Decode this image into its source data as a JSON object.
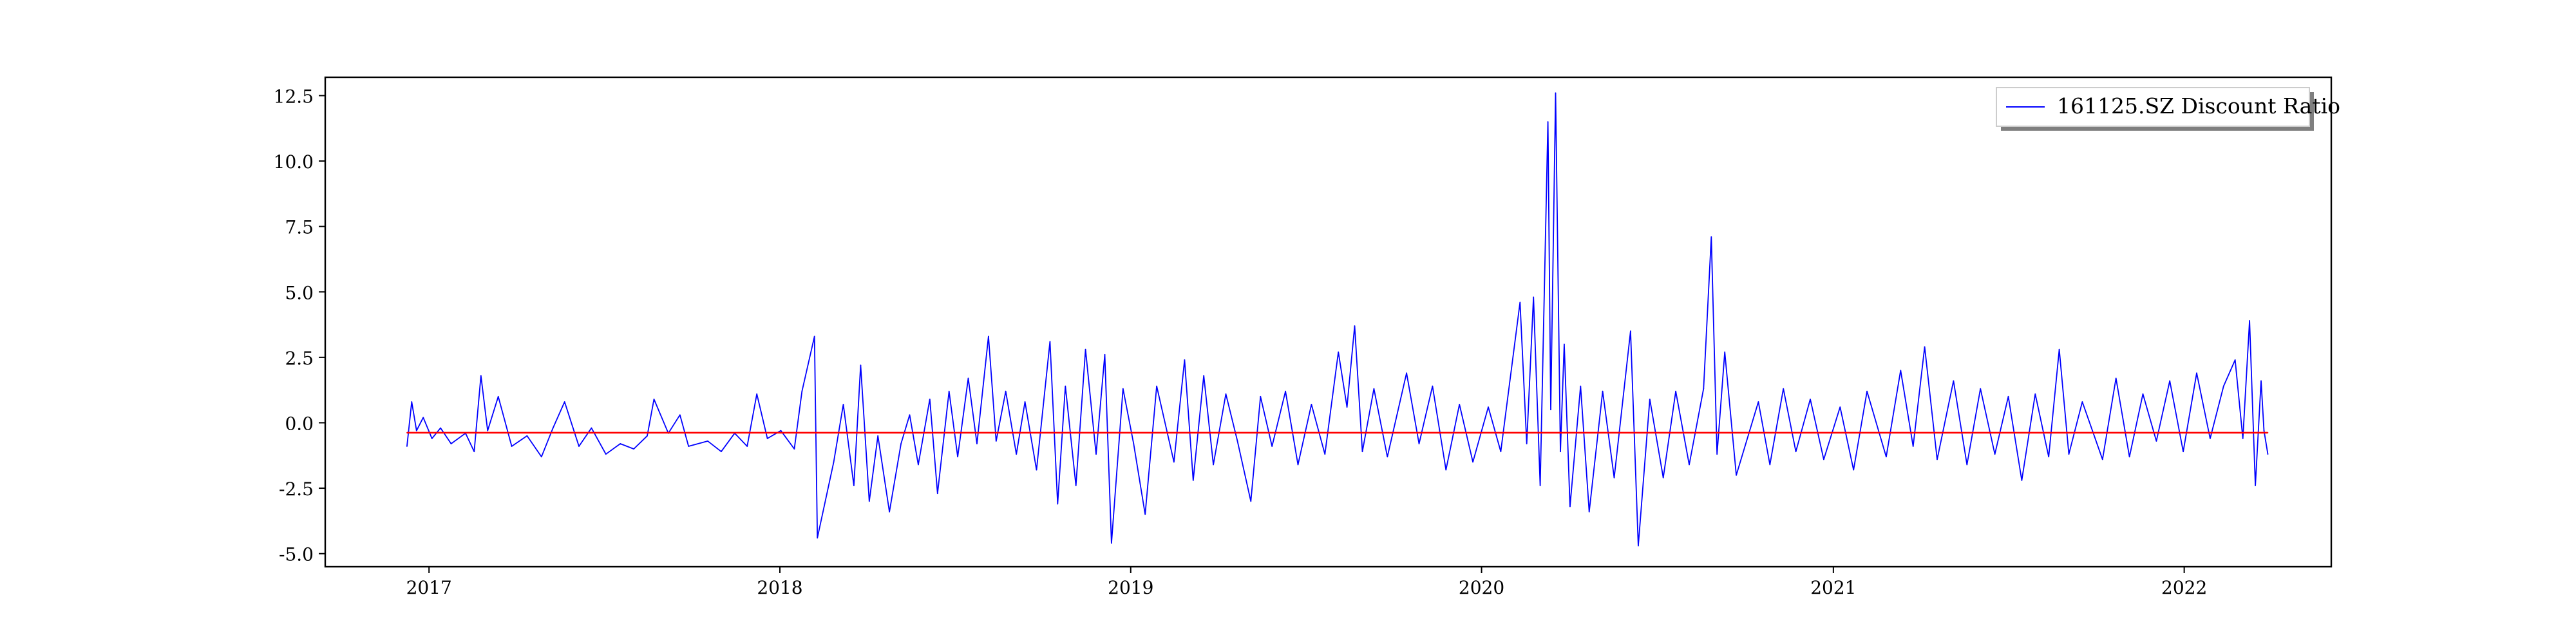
{
  "chart_data": {
    "type": "line",
    "title": "",
    "xlabel": "",
    "ylabel": "",
    "xlim": [
      "2016-09-15",
      "2022-06-03"
    ],
    "ylim": [
      -5.5,
      13.2
    ],
    "x_ticks": [
      "2017",
      "2018",
      "2019",
      "2020",
      "2021",
      "2022"
    ],
    "y_ticks": [
      -5.0,
      -2.5,
      0.0,
      2.5,
      5.0,
      7.5,
      10.0,
      12.5
    ],
    "grid": false,
    "legend": {
      "position": "top-right",
      "entries": [
        "161125.SZ Discount Ratio"
      ]
    },
    "series": [
      {
        "name": "161125.SZ Discount Ratio",
        "color": "#0000ff",
        "points": [
          [
            "2016-12-09",
            -0.9
          ],
          [
            "2016-12-14",
            0.8
          ],
          [
            "2016-12-19",
            -0.3
          ],
          [
            "2016-12-26",
            0.2
          ],
          [
            "2017-01-04",
            -0.6
          ],
          [
            "2017-01-13",
            -0.2
          ],
          [
            "2017-01-24",
            -0.8
          ],
          [
            "2017-02-08",
            -0.4
          ],
          [
            "2017-02-17",
            -1.1
          ],
          [
            "2017-02-24",
            1.8
          ],
          [
            "2017-03-03",
            -0.3
          ],
          [
            "2017-03-14",
            1.0
          ],
          [
            "2017-03-28",
            -0.9
          ],
          [
            "2017-04-13",
            -0.5
          ],
          [
            "2017-04-28",
            -1.3
          ],
          [
            "2017-05-10",
            -0.2
          ],
          [
            "2017-05-22",
            0.8
          ],
          [
            "2017-06-06",
            -0.9
          ],
          [
            "2017-06-19",
            -0.2
          ],
          [
            "2017-07-04",
            -1.2
          ],
          [
            "2017-07-19",
            -0.8
          ],
          [
            "2017-08-02",
            -1.0
          ],
          [
            "2017-08-16",
            -0.5
          ],
          [
            "2017-08-23",
            0.9
          ],
          [
            "2017-09-07",
            -0.4
          ],
          [
            "2017-09-19",
            0.3
          ],
          [
            "2017-09-28",
            -0.9
          ],
          [
            "2017-10-18",
            -0.7
          ],
          [
            "2017-11-01",
            -1.1
          ],
          [
            "2017-11-15",
            -0.4
          ],
          [
            "2017-11-28",
            -0.9
          ],
          [
            "2017-12-08",
            1.1
          ],
          [
            "2017-12-19",
            -0.6
          ],
          [
            "2018-01-02",
            -0.3
          ],
          [
            "2018-01-16",
            -1.0
          ],
          [
            "2018-01-24",
            1.2
          ],
          [
            "2018-02-06",
            3.3
          ],
          [
            "2018-02-09",
            -4.4
          ],
          [
            "2018-02-26",
            -1.5
          ],
          [
            "2018-03-08",
            0.7
          ],
          [
            "2018-03-19",
            -2.4
          ],
          [
            "2018-03-26",
            2.2
          ],
          [
            "2018-04-04",
            -3.0
          ],
          [
            "2018-04-13",
            -0.5
          ],
          [
            "2018-04-25",
            -3.4
          ],
          [
            "2018-05-07",
            -0.8
          ],
          [
            "2018-05-16",
            0.3
          ],
          [
            "2018-05-25",
            -1.6
          ],
          [
            "2018-06-06",
            0.9
          ],
          [
            "2018-06-14",
            -2.7
          ],
          [
            "2018-06-26",
            1.2
          ],
          [
            "2018-07-05",
            -1.3
          ],
          [
            "2018-07-16",
            1.7
          ],
          [
            "2018-07-25",
            -0.8
          ],
          [
            "2018-08-06",
            3.3
          ],
          [
            "2018-08-14",
            -0.7
          ],
          [
            "2018-08-24",
            1.2
          ],
          [
            "2018-09-04",
            -1.2
          ],
          [
            "2018-09-13",
            0.8
          ],
          [
            "2018-09-25",
            -1.8
          ],
          [
            "2018-10-09",
            3.1
          ],
          [
            "2018-10-17",
            -3.1
          ],
          [
            "2018-10-25",
            1.4
          ],
          [
            "2018-11-05",
            -2.4
          ],
          [
            "2018-11-15",
            2.8
          ],
          [
            "2018-11-26",
            -1.2
          ],
          [
            "2018-12-05",
            2.6
          ],
          [
            "2018-12-12",
            -4.6
          ],
          [
            "2018-12-24",
            1.3
          ],
          [
            "2019-01-04",
            -0.8
          ],
          [
            "2019-01-16",
            -3.5
          ],
          [
            "2019-01-28",
            1.4
          ],
          [
            "2019-02-15",
            -1.5
          ],
          [
            "2019-02-26",
            2.4
          ],
          [
            "2019-03-07",
            -2.2
          ],
          [
            "2019-03-18",
            1.8
          ],
          [
            "2019-03-28",
            -1.6
          ],
          [
            "2019-04-10",
            1.1
          ],
          [
            "2019-04-22",
            -0.7
          ],
          [
            "2019-05-06",
            -3.0
          ],
          [
            "2019-05-16",
            1.0
          ],
          [
            "2019-05-28",
            -0.9
          ],
          [
            "2019-06-11",
            1.2
          ],
          [
            "2019-06-24",
            -1.6
          ],
          [
            "2019-07-08",
            0.7
          ],
          [
            "2019-07-22",
            -1.2
          ],
          [
            "2019-08-05",
            2.7
          ],
          [
            "2019-08-14",
            0.6
          ],
          [
            "2019-08-22",
            3.7
          ],
          [
            "2019-08-30",
            -1.1
          ],
          [
            "2019-09-11",
            1.3
          ],
          [
            "2019-09-25",
            -1.3
          ],
          [
            "2019-10-15",
            1.9
          ],
          [
            "2019-10-28",
            -0.8
          ],
          [
            "2019-11-11",
            1.4
          ],
          [
            "2019-11-25",
            -1.8
          ],
          [
            "2019-12-09",
            0.7
          ],
          [
            "2019-12-23",
            -1.5
          ],
          [
            "2020-01-08",
            0.6
          ],
          [
            "2020-01-21",
            -1.1
          ],
          [
            "2020-02-10",
            4.6
          ],
          [
            "2020-02-17",
            -0.8
          ],
          [
            "2020-02-24",
            4.8
          ],
          [
            "2020-03-02",
            -2.4
          ],
          [
            "2020-03-10",
            11.5
          ],
          [
            "2020-03-13",
            0.5
          ],
          [
            "2020-03-18",
            12.6
          ],
          [
            "2020-03-23",
            -1.1
          ],
          [
            "2020-03-27",
            3.0
          ],
          [
            "2020-04-02",
            -3.2
          ],
          [
            "2020-04-13",
            1.4
          ],
          [
            "2020-04-22",
            -3.4
          ],
          [
            "2020-05-06",
            1.2
          ],
          [
            "2020-05-18",
            -2.1
          ],
          [
            "2020-06-04",
            3.5
          ],
          [
            "2020-06-12",
            -4.7
          ],
          [
            "2020-06-24",
            0.9
          ],
          [
            "2020-07-08",
            -2.1
          ],
          [
            "2020-07-21",
            1.2
          ],
          [
            "2020-08-04",
            -1.6
          ],
          [
            "2020-08-19",
            1.3
          ],
          [
            "2020-08-27",
            7.1
          ],
          [
            "2020-09-02",
            -1.2
          ],
          [
            "2020-09-10",
            2.7
          ],
          [
            "2020-09-22",
            -2.0
          ],
          [
            "2020-10-15",
            0.8
          ],
          [
            "2020-10-27",
            -1.6
          ],
          [
            "2020-11-10",
            1.3
          ],
          [
            "2020-11-23",
            -1.1
          ],
          [
            "2020-12-08",
            0.9
          ],
          [
            "2020-12-22",
            -1.4
          ],
          [
            "2021-01-08",
            0.6
          ],
          [
            "2021-01-22",
            -1.8
          ],
          [
            "2021-02-05",
            1.2
          ],
          [
            "2021-02-25",
            -1.3
          ],
          [
            "2021-03-12",
            2.0
          ],
          [
            "2021-03-25",
            -0.9
          ],
          [
            "2021-04-06",
            2.9
          ],
          [
            "2021-04-19",
            -1.4
          ],
          [
            "2021-05-06",
            1.6
          ],
          [
            "2021-05-20",
            -1.6
          ],
          [
            "2021-06-03",
            1.3
          ],
          [
            "2021-06-18",
            -1.2
          ],
          [
            "2021-07-02",
            1.0
          ],
          [
            "2021-07-16",
            -2.2
          ],
          [
            "2021-07-30",
            1.1
          ],
          [
            "2021-08-13",
            -1.3
          ],
          [
            "2021-08-24",
            2.8
          ],
          [
            "2021-09-03",
            -1.2
          ],
          [
            "2021-09-17",
            0.8
          ],
          [
            "2021-10-08",
            -1.4
          ],
          [
            "2021-10-22",
            1.7
          ],
          [
            "2021-11-05",
            -1.3
          ],
          [
            "2021-11-19",
            1.1
          ],
          [
            "2021-12-03",
            -0.7
          ],
          [
            "2021-12-17",
            1.6
          ],
          [
            "2021-12-31",
            -1.1
          ],
          [
            "2022-01-14",
            1.9
          ],
          [
            "2022-01-28",
            -0.6
          ],
          [
            "2022-02-11",
            1.4
          ],
          [
            "2022-02-23",
            2.4
          ],
          [
            "2022-03-03",
            -0.6
          ],
          [
            "2022-03-10",
            3.9
          ],
          [
            "2022-03-16",
            -2.4
          ],
          [
            "2022-03-22",
            1.6
          ],
          [
            "2022-03-25",
            -0.3
          ],
          [
            "2022-03-29",
            -1.2
          ]
        ]
      },
      {
        "color": "#ff0000",
        "points": [
          [
            "2016-12-09",
            -0.38
          ],
          [
            "2022-03-29",
            -0.38
          ]
        ]
      }
    ]
  }
}
